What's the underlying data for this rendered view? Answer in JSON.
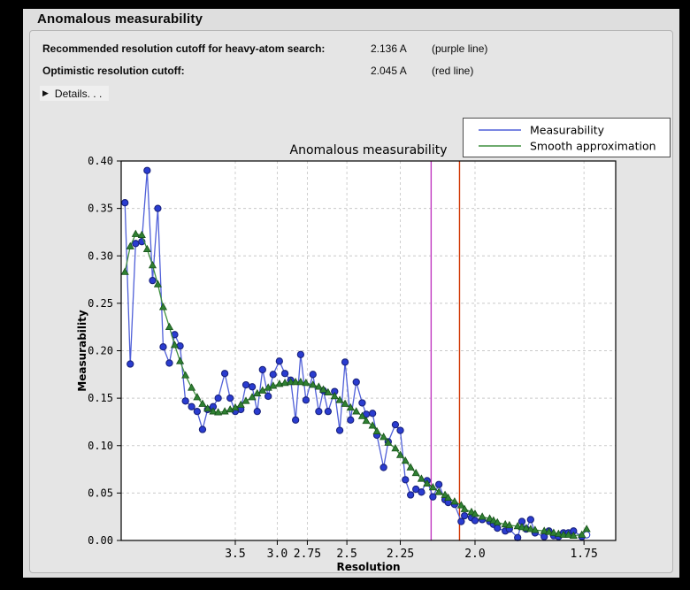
{
  "header": {
    "title": "Anomalous measurability"
  },
  "summary": {
    "rows": [
      {
        "label": "Recommended resolution cutoff for heavy-atom search:",
        "value": "2.136 A",
        "note": "(purple line)"
      },
      {
        "label": "Optimistic resolution cutoff:",
        "value": "2.045 A",
        "note": "(red line)"
      }
    ],
    "details_arrow": "▶",
    "details_label": "Details. . ."
  },
  "colors": {
    "panel_bg": "#dedede",
    "groupbox_bg": "#e5e5e5",
    "plot_bg": "#ffffff",
    "grid": "#c9c9c9",
    "frame": "#000000",
    "blue_line": "#4f5fd8",
    "blue_marker": "#2a3cd0",
    "blue_marker_edge": "#19227e",
    "green_line": "#3f8f3f",
    "green_marker": "#2f8032",
    "green_marker_edge": "#17511a",
    "purple_cutoff": "#c13ac1",
    "red_cutoff": "#d13500",
    "legend_border": "#4d4d4d"
  },
  "chart_data": {
    "type": "line",
    "title": "Anomalous measurability",
    "xlabel": "Resolution",
    "ylabel": "Measurability",
    "x_scale": "linear in 1/d^2 (resolution in Angstrom, decreasing)",
    "x_range_s": [
      0.0015,
      0.3488
    ],
    "ylim": [
      0.0,
      0.4
    ],
    "x_ticks_d": [
      3.5,
      3.0,
      2.75,
      2.5,
      2.25,
      2.0,
      1.75
    ],
    "x_tick_labels": [
      "3.5",
      "3.0",
      "2.75",
      "2.5",
      "2.25",
      "2.0",
      "1.75"
    ],
    "y_ticks": [
      0.0,
      0.05,
      0.1,
      0.15,
      0.2,
      0.25,
      0.3,
      0.35,
      0.4
    ],
    "y_tick_labels": [
      "0.00",
      "0.05",
      "0.10",
      "0.15",
      "0.20",
      "0.25",
      "0.30",
      "0.35",
      "0.40"
    ],
    "grid": true,
    "legend_position": "upper right, overlapping plot edge",
    "legend": [
      {
        "label": "Measurability",
        "color": "#4f5fd8"
      },
      {
        "label": "Smooth approximation",
        "color": "#3f8f3f"
      }
    ],
    "vlines": [
      {
        "name": "recommended-cutoff",
        "d": 2.136,
        "color": "#c13ac1"
      },
      {
        "name": "optimistic-cutoff",
        "d": 2.045,
        "color": "#d13500"
      }
    ],
    "resolution_d": [
      15.57,
      11.27,
      9.27,
      7.91,
      7.12,
      6.52,
      6.06,
      5.68,
      5.32,
      5.06,
      4.83,
      4.63,
      4.43,
      4.27,
      4.13,
      4.01,
      3.89,
      3.79,
      3.67,
      3.58,
      3.5,
      3.42,
      3.35,
      3.27,
      3.21,
      3.15,
      3.09,
      3.04,
      2.98,
      2.93,
      2.88,
      2.84,
      2.8,
      2.76,
      2.71,
      2.67,
      2.64,
      2.61,
      2.57,
      2.54,
      2.51,
      2.48,
      2.45,
      2.42,
      2.4,
      2.37,
      2.35,
      2.32,
      2.3,
      2.27,
      2.25,
      2.23,
      2.21,
      2.19,
      2.17,
      2.15,
      2.13,
      2.11,
      2.09,
      2.08,
      2.06,
      2.04,
      2.03,
      2.01,
      2.0,
      1.98,
      1.96,
      1.95,
      1.94,
      1.92,
      1.91,
      1.89,
      1.88,
      1.87,
      1.86,
      1.85,
      1.83,
      1.82,
      1.81,
      1.8,
      1.79,
      1.78,
      1.77,
      1.754,
      1.745
    ],
    "series": [
      {
        "name": "Measurability",
        "marker": "circle",
        "last_marker": "open-circle",
        "values": [
          0.356,
          0.186,
          0.313,
          0.315,
          0.39,
          0.274,
          0.35,
          0.204,
          0.187,
          0.217,
          0.205,
          0.147,
          0.141,
          0.136,
          0.117,
          0.138,
          0.141,
          0.15,
          0.176,
          0.15,
          0.136,
          0.138,
          0.164,
          0.162,
          0.136,
          0.18,
          0.152,
          0.175,
          0.189,
          0.176,
          0.169,
          0.127,
          0.196,
          0.148,
          0.175,
          0.136,
          0.158,
          0.136,
          0.157,
          0.116,
          0.188,
          0.127,
          0.167,
          0.145,
          0.133,
          0.134,
          0.111,
          0.077,
          0.104,
          0.122,
          0.116,
          0.064,
          0.048,
          0.054,
          0.051,
          0.063,
          0.046,
          0.059,
          0.043,
          0.04,
          0.038,
          0.02,
          0.026,
          0.024,
          0.021,
          0.022,
          0.02,
          0.017,
          0.013,
          0.01,
          0.012,
          0.003,
          0.02,
          0.012,
          0.022,
          0.008,
          0.004,
          0.01,
          0.005,
          0.004,
          0.008,
          0.008,
          0.01,
          0.004,
          0.006
        ]
      },
      {
        "name": "Smooth approximation",
        "marker": "triangle",
        "values": [
          0.283,
          0.31,
          0.323,
          0.322,
          0.307,
          0.29,
          0.27,
          0.246,
          0.225,
          0.206,
          0.189,
          0.174,
          0.161,
          0.151,
          0.144,
          0.139,
          0.136,
          0.135,
          0.136,
          0.138,
          0.14,
          0.143,
          0.147,
          0.151,
          0.155,
          0.158,
          0.161,
          0.163,
          0.165,
          0.166,
          0.167,
          0.167,
          0.167,
          0.166,
          0.164,
          0.162,
          0.159,
          0.156,
          0.152,
          0.148,
          0.144,
          0.14,
          0.136,
          0.131,
          0.126,
          0.121,
          0.115,
          0.109,
          0.103,
          0.097,
          0.09,
          0.084,
          0.077,
          0.071,
          0.065,
          0.06,
          0.056,
          0.051,
          0.048,
          0.045,
          0.041,
          0.037,
          0.033,
          0.03,
          0.028,
          0.025,
          0.023,
          0.021,
          0.019,
          0.017,
          0.016,
          0.015,
          0.014,
          0.013,
          0.012,
          0.011,
          0.01,
          0.009,
          0.008,
          0.007,
          0.006,
          0.006,
          0.005,
          0.006,
          0.012
        ]
      }
    ]
  }
}
